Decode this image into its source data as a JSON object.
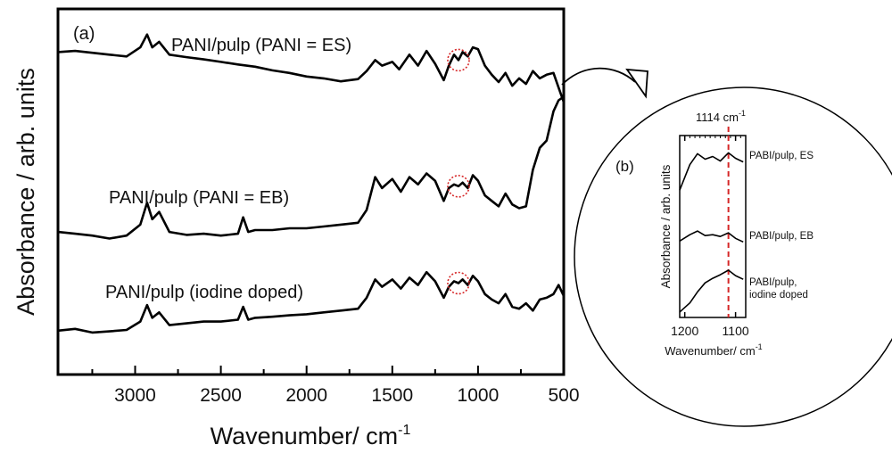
{
  "chart_data": [
    {
      "type": "line",
      "panel_label": "(a)",
      "xlabel": "Wavenumber/ cm",
      "xlabel_sup": "-1",
      "ylabel": "Absorbance / arb. units",
      "xlim": [
        3450,
        500
      ],
      "ylim": [
        0,
        10
      ],
      "xticks": [
        3000,
        2500,
        2000,
        1500,
        1000,
        500
      ],
      "xtick_labels": [
        "3000",
        "2500",
        "2000",
        "1500",
        "1000",
        "500"
      ],
      "y_tick_labels_shown": false,
      "grid": false,
      "highlight_wavenumber": 1114,
      "series": [
        {
          "name": "PANI/pulp (PANI = ES)",
          "x": [
            3450,
            3350,
            3250,
            3150,
            3050,
            2970,
            2930,
            2900,
            2860,
            2800,
            2700,
            2600,
            2500,
            2400,
            2300,
            2200,
            2100,
            2000,
            1900,
            1800,
            1700,
            1650,
            1600,
            1560,
            1500,
            1460,
            1400,
            1350,
            1300,
            1250,
            1200,
            1170,
            1140,
            1114,
            1090,
            1060,
            1030,
            1000,
            960,
            920,
            880,
            840,
            800,
            760,
            720,
            680,
            640,
            600,
            560,
            530,
            500
          ],
          "y": [
            8.82,
            8.85,
            8.8,
            8.75,
            8.7,
            8.95,
            9.3,
            8.95,
            9.1,
            8.75,
            8.68,
            8.62,
            8.55,
            8.48,
            8.42,
            8.32,
            8.25,
            8.15,
            8.1,
            8.02,
            8.08,
            8.3,
            8.6,
            8.45,
            8.55,
            8.35,
            8.75,
            8.45,
            8.85,
            8.5,
            8.05,
            8.45,
            8.75,
            8.6,
            8.82,
            8.7,
            8.95,
            8.9,
            8.45,
            8.2,
            8.0,
            8.25,
            7.9,
            8.1,
            7.95,
            8.3,
            8.1,
            8.2,
            8.25,
            7.85,
            7.45
          ]
        },
        {
          "name": "PANI/pulp (PANI = EB)",
          "x": [
            3450,
            3350,
            3250,
            3150,
            3050,
            2970,
            2930,
            2900,
            2860,
            2800,
            2700,
            2600,
            2500,
            2400,
            2370,
            2340,
            2300,
            2200,
            2100,
            2000,
            1900,
            1800,
            1700,
            1650,
            1600,
            1560,
            1500,
            1450,
            1400,
            1350,
            1300,
            1250,
            1200,
            1170,
            1140,
            1114,
            1090,
            1060,
            1030,
            1000,
            960,
            920,
            880,
            840,
            800,
            760,
            720,
            680,
            640,
            600,
            560,
            530,
            500
          ],
          "y": [
            3.9,
            3.85,
            3.8,
            3.72,
            3.8,
            4.1,
            4.7,
            4.25,
            4.45,
            3.9,
            3.82,
            3.85,
            3.8,
            3.85,
            4.3,
            3.9,
            3.95,
            3.95,
            4.0,
            4.0,
            4.05,
            4.1,
            4.15,
            4.5,
            5.4,
            5.1,
            5.35,
            5.0,
            5.4,
            5.2,
            5.5,
            5.3,
            4.75,
            5.1,
            5.2,
            5.15,
            5.25,
            5.1,
            5.45,
            5.3,
            4.9,
            4.75,
            4.6,
            4.95,
            4.65,
            4.55,
            4.6,
            5.6,
            6.2,
            6.4,
            7.2,
            7.5,
            7.6
          ]
        },
        {
          "name": "PANI/pulp (iodine doped)",
          "x": [
            3450,
            3350,
            3250,
            3150,
            3050,
            2970,
            2930,
            2900,
            2860,
            2800,
            2700,
            2600,
            2500,
            2400,
            2370,
            2340,
            2300,
            2200,
            2100,
            2000,
            1900,
            1800,
            1700,
            1650,
            1600,
            1560,
            1500,
            1450,
            1400,
            1350,
            1300,
            1250,
            1200,
            1170,
            1140,
            1114,
            1090,
            1060,
            1030,
            1000,
            960,
            920,
            880,
            840,
            800,
            760,
            720,
            680,
            640,
            600,
            560,
            530,
            500
          ],
          "y": [
            1.2,
            1.25,
            1.15,
            1.18,
            1.22,
            1.45,
            1.9,
            1.55,
            1.7,
            1.35,
            1.4,
            1.45,
            1.45,
            1.5,
            1.85,
            1.5,
            1.55,
            1.58,
            1.62,
            1.65,
            1.7,
            1.75,
            1.8,
            2.1,
            2.6,
            2.4,
            2.6,
            2.35,
            2.65,
            2.45,
            2.8,
            2.55,
            2.1,
            2.4,
            2.55,
            2.5,
            2.6,
            2.45,
            2.7,
            2.55,
            2.2,
            2.05,
            1.95,
            2.2,
            1.85,
            1.8,
            1.95,
            1.75,
            2.05,
            2.1,
            2.2,
            2.45,
            2.15
          ]
        }
      ]
    },
    {
      "type": "line",
      "panel_label": "(b)",
      "xlabel": "Wavenumber/ cm",
      "xlabel_sup": "-1",
      "ylabel": "Absorbance / arb. units",
      "xlim": [
        1210,
        1080
      ],
      "ylim": [
        0,
        10
      ],
      "xticks": [
        1200,
        1100
      ],
      "xtick_labels": [
        "1200",
        "1100"
      ],
      "y_tick_labels_shown": false,
      "marker_line": {
        "x": 1114,
        "label": "1114 cm",
        "label_sup": "-1",
        "color": "#d62728",
        "style": "dashed"
      },
      "series": [
        {
          "name": "PABI/pulp, ES",
          "x": [
            1210,
            1190,
            1175,
            1160,
            1145,
            1130,
            1114,
            1100,
            1085
          ],
          "y": [
            7.0,
            8.4,
            9.0,
            8.7,
            8.85,
            8.6,
            9.05,
            8.75,
            8.55
          ]
        },
        {
          "name": "PABI/pulp, EB",
          "x": [
            1210,
            1190,
            1175,
            1160,
            1145,
            1130,
            1114,
            1100,
            1085
          ],
          "y": [
            4.2,
            4.55,
            4.75,
            4.5,
            4.55,
            4.45,
            4.65,
            4.35,
            4.15
          ]
        },
        {
          "name": "PABI/pulp,",
          "name_line2": "iodine doped",
          "x": [
            1210,
            1190,
            1175,
            1160,
            1145,
            1130,
            1114,
            1100,
            1085
          ],
          "y": [
            0.3,
            0.8,
            1.4,
            1.9,
            2.15,
            2.35,
            2.6,
            2.3,
            2.1
          ]
        }
      ]
    }
  ]
}
